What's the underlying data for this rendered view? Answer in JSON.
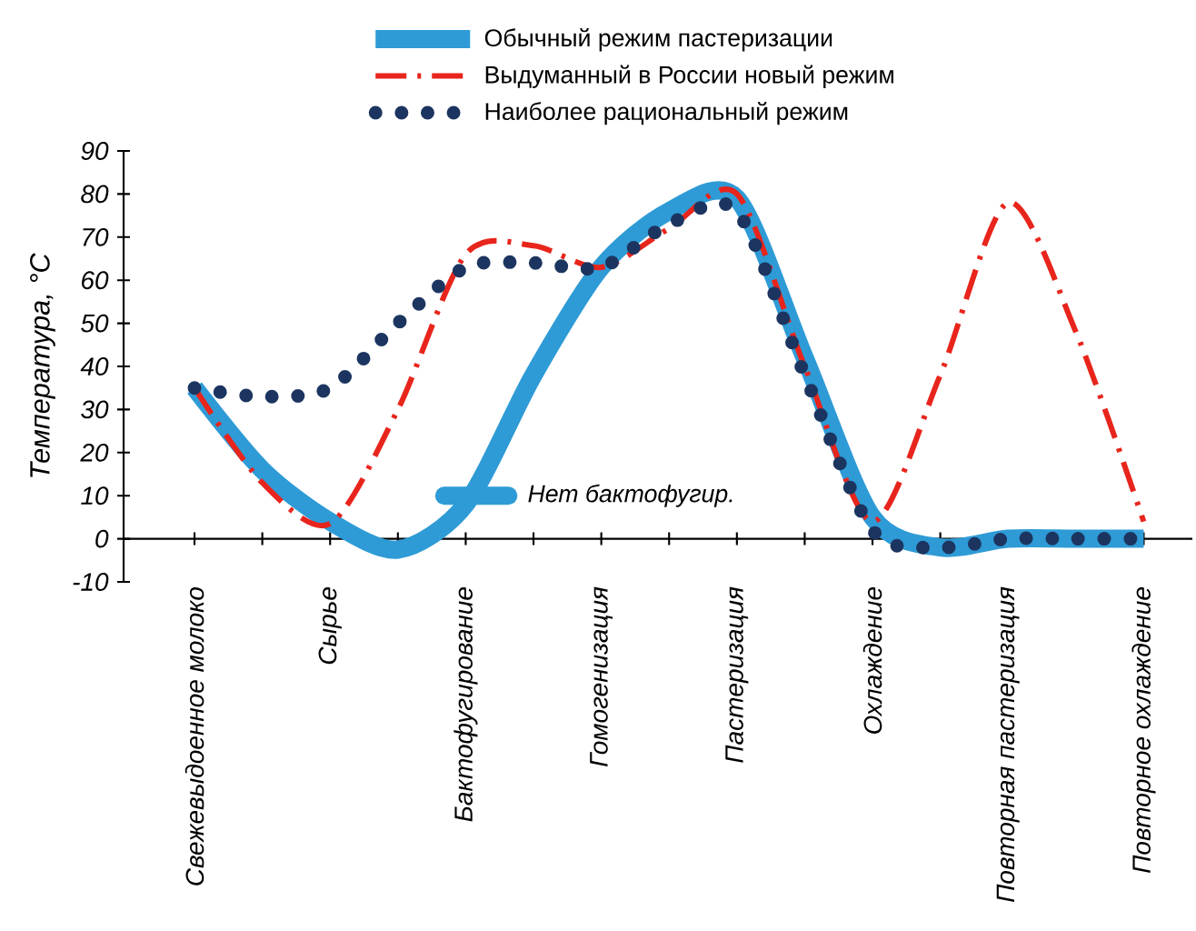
{
  "chart_data": {
    "type": "line",
    "ylabel": "Температура, °C",
    "categories": [
      "Свежевыдоенное молоко",
      null,
      "Сырье",
      null,
      "Бактофугирование",
      null,
      "Гомогенизация",
      null,
      "Пастеризация",
      null,
      "Охлаждение",
      null,
      "Повторная пастеризация",
      null,
      "Повторное охлаждение"
    ],
    "series": [
      {
        "name": "Обычный режим пастеризации",
        "color": "#2e9bd6",
        "line_style": "solid",
        "values": [
          35,
          16,
          4,
          -2.5,
          8,
          38,
          63,
          76,
          79,
          42,
          5,
          -2,
          0,
          0,
          0
        ]
      },
      {
        "name": "Выдуманный в России новый режим",
        "color": "#e8251c",
        "line_style": "dashdot",
        "values": [
          35,
          13,
          3.5,
          30,
          66,
          68,
          63,
          72,
          80,
          40,
          4,
          38,
          78,
          48,
          4
        ]
      },
      {
        "name": "Наиболее рациональный режим",
        "color": "#1c3560",
        "line_style": "dotted",
        "values": [
          35,
          33,
          35,
          50,
          63,
          64,
          63,
          73,
          76,
          38,
          2,
          -2,
          0,
          0,
          0
        ]
      }
    ],
    "ylim": [
      -10,
      90
    ],
    "yticks": [
      -10,
      0,
      10,
      20,
      30,
      40,
      50,
      60,
      70,
      80,
      90
    ],
    "legend": "top",
    "grid": false,
    "marker": "none",
    "annotations": [
      "Нет бактофугир."
    ]
  }
}
